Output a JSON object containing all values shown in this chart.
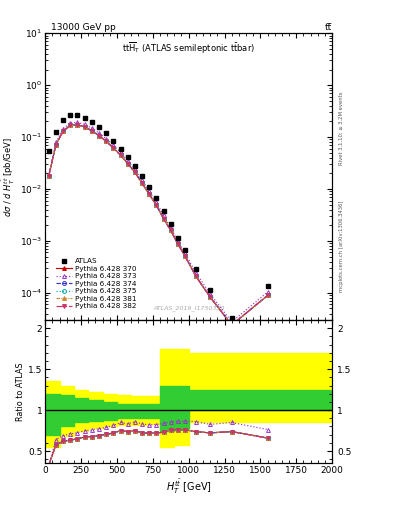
{
  "title_top": "13000 GeV pp",
  "title_top_right": "tt̅",
  "plot_title": "tt̅HT (ATLAS semileptonic t̅bar)",
  "watermark": "ATLAS_2019_I1750330",
  "right_label_top": "Rivet 3.1.10; ≥ 3.2M events",
  "right_label_bottom": "mcplots.cern.ch [arXiv:1306.3436]",
  "ylabel_main": "dσ / d H_T^{tbart} [pb/GeV]",
  "ylabel_ratio": "Ratio to ATLAS",
  "xlim": [
    0,
    2000
  ],
  "ylim_main": [
    3e-05,
    10
  ],
  "ylim_ratio": [
    0.35,
    2.1
  ],
  "atlas_x": [
    25,
    75,
    125,
    175,
    225,
    275,
    325,
    375,
    425,
    475,
    525,
    575,
    625,
    675,
    725,
    775,
    825,
    875,
    925,
    975,
    1050,
    1150,
    1300,
    1550
  ],
  "atlas_y": [
    0.055,
    0.125,
    0.21,
    0.265,
    0.265,
    0.235,
    0.195,
    0.155,
    0.118,
    0.086,
    0.06,
    0.042,
    0.028,
    0.018,
    0.011,
    0.0068,
    0.0037,
    0.0021,
    0.00115,
    0.00067,
    0.000285,
    0.000115,
    3.25e-05,
    0.000135
  ],
  "mc_x": [
    25,
    75,
    125,
    175,
    225,
    275,
    325,
    375,
    425,
    475,
    525,
    575,
    625,
    675,
    725,
    775,
    825,
    875,
    925,
    975,
    1050,
    1150,
    1300,
    1550
  ],
  "mc_370_y": [
    0.018,
    0.072,
    0.13,
    0.168,
    0.172,
    0.158,
    0.132,
    0.107,
    0.083,
    0.062,
    0.045,
    0.031,
    0.021,
    0.013,
    0.0079,
    0.0049,
    0.0027,
    0.0016,
    0.00087,
    0.00051,
    0.00021,
    8.3e-05,
    2.4e-05,
    8.9e-05
  ],
  "mc_373_y": [
    0.018,
    0.08,
    0.145,
    0.188,
    0.192,
    0.176,
    0.148,
    0.12,
    0.093,
    0.07,
    0.051,
    0.035,
    0.024,
    0.015,
    0.009,
    0.0056,
    0.0031,
    0.0018,
    0.00099,
    0.00058,
    0.000245,
    9.55e-05,
    2.76e-05,
    0.000103
  ],
  "mc_374_y": [
    0.018,
    0.072,
    0.13,
    0.168,
    0.172,
    0.158,
    0.132,
    0.107,
    0.083,
    0.062,
    0.045,
    0.031,
    0.021,
    0.013,
    0.0079,
    0.0049,
    0.0027,
    0.0016,
    0.00087,
    0.00051,
    0.00021,
    8.3e-05,
    2.4e-05,
    8.9e-05
  ],
  "mc_375_y": [
    0.018,
    0.072,
    0.13,
    0.168,
    0.172,
    0.158,
    0.132,
    0.107,
    0.083,
    0.062,
    0.045,
    0.031,
    0.021,
    0.013,
    0.0079,
    0.0049,
    0.0027,
    0.0016,
    0.00087,
    0.00051,
    0.00021,
    8.3e-05,
    2.4e-05,
    8.9e-05
  ],
  "mc_381_y": [
    0.018,
    0.072,
    0.13,
    0.168,
    0.172,
    0.158,
    0.132,
    0.107,
    0.083,
    0.062,
    0.045,
    0.031,
    0.021,
    0.013,
    0.0079,
    0.0049,
    0.0027,
    0.0016,
    0.00087,
    0.00051,
    0.00021,
    8.3e-05,
    2.4e-05,
    8.9e-05
  ],
  "mc_382_y": [
    0.018,
    0.072,
    0.13,
    0.168,
    0.172,
    0.158,
    0.132,
    0.107,
    0.083,
    0.062,
    0.045,
    0.031,
    0.021,
    0.013,
    0.0079,
    0.0049,
    0.0027,
    0.0016,
    0.00087,
    0.00051,
    0.00021,
    8.3e-05,
    2.4e-05,
    8.9e-05
  ],
  "color_370": "#cc0000",
  "color_373": "#9933cc",
  "color_374": "#3333cc",
  "color_375": "#00aaaa",
  "color_381": "#cc8833",
  "color_382": "#cc3366",
  "band_x_yellow": [
    0,
    100,
    200,
    300,
    400,
    500,
    600,
    700,
    800,
    900,
    1000,
    1600,
    2000
  ],
  "yellow_low": [
    0.55,
    0.68,
    0.75,
    0.78,
    0.8,
    0.82,
    0.82,
    0.83,
    0.55,
    0.58,
    0.85,
    0.85,
    0.85
  ],
  "yellow_high": [
    1.35,
    1.3,
    1.25,
    1.22,
    1.2,
    1.18,
    1.17,
    1.17,
    1.75,
    1.75,
    1.7,
    1.7,
    1.7
  ],
  "band_x_green": [
    0,
    100,
    200,
    300,
    400,
    500,
    600,
    700,
    800,
    900,
    1000,
    1600,
    2000
  ],
  "green_low": [
    0.7,
    0.8,
    0.85,
    0.87,
    0.88,
    0.9,
    0.9,
    0.9,
    0.75,
    0.78,
    1.0,
    1.0,
    1.0
  ],
  "green_high": [
    1.2,
    1.18,
    1.15,
    1.12,
    1.1,
    1.08,
    1.07,
    1.07,
    1.3,
    1.3,
    1.25,
    1.25,
    1.25
  ],
  "ratio_373_x": [
    25,
    75,
    125,
    175,
    225,
    275,
    325,
    375,
    425,
    475,
    525,
    575,
    625,
    675,
    725,
    775,
    825,
    875,
    925,
    975,
    1050,
    1150,
    1300,
    1550
  ],
  "ratio_373_y": [
    0.33,
    0.64,
    0.69,
    0.71,
    0.724,
    0.748,
    0.758,
    0.773,
    0.789,
    0.813,
    0.85,
    0.833,
    0.857,
    0.833,
    0.818,
    0.824,
    0.838,
    0.857,
    0.861,
    0.866,
    0.86,
    0.826,
    0.849,
    0.763
  ],
  "ratio_others_x": [
    25,
    75,
    125,
    175,
    225,
    275,
    325,
    375,
    425,
    475,
    525,
    575,
    625,
    675,
    725,
    775,
    825,
    875,
    925,
    975,
    1050,
    1150,
    1300,
    1550
  ],
  "ratio_others_y": [
    0.33,
    0.576,
    0.619,
    0.634,
    0.649,
    0.672,
    0.677,
    0.69,
    0.703,
    0.721,
    0.75,
    0.738,
    0.75,
    0.722,
    0.718,
    0.721,
    0.73,
    0.762,
    0.757,
    0.761,
    0.737,
    0.722,
    0.738,
    0.659
  ]
}
